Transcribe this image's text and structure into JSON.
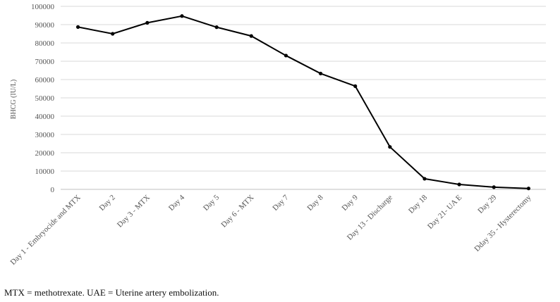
{
  "chart_data": {
    "type": "line",
    "title": "",
    "xlabel": "",
    "ylabel": "BHCG (IU/L)",
    "ylim": [
      0,
      100000
    ],
    "yticks": [
      0,
      10000,
      20000,
      30000,
      40000,
      50000,
      60000,
      70000,
      80000,
      90000,
      100000
    ],
    "grid": true,
    "legend": "none",
    "categories": [
      "Day 1 - Embryocide and MTX",
      "Day 2",
      "Day 3 - MTX",
      "Day 4",
      "Day 5",
      "Day 6 - MTX",
      "Day 7",
      "Day 8",
      "Day 9",
      "Day 13 - Discharge",
      "Day 18",
      "Day 21- UA E",
      "Day 29",
      "Dday 35 - Hysterectomy"
    ],
    "series": [
      {
        "values": [
          88700,
          85000,
          91000,
          94700,
          88600,
          83800,
          73100,
          63300,
          56400,
          23200,
          5800,
          2700,
          1200,
          500
        ]
      }
    ],
    "colors": {
      "line": "#000000",
      "grid": "#d9d9d9",
      "axis": "#bfbfbf"
    }
  },
  "footnote": "MTX = methotrexate. UAE = Uterine artery embolization."
}
